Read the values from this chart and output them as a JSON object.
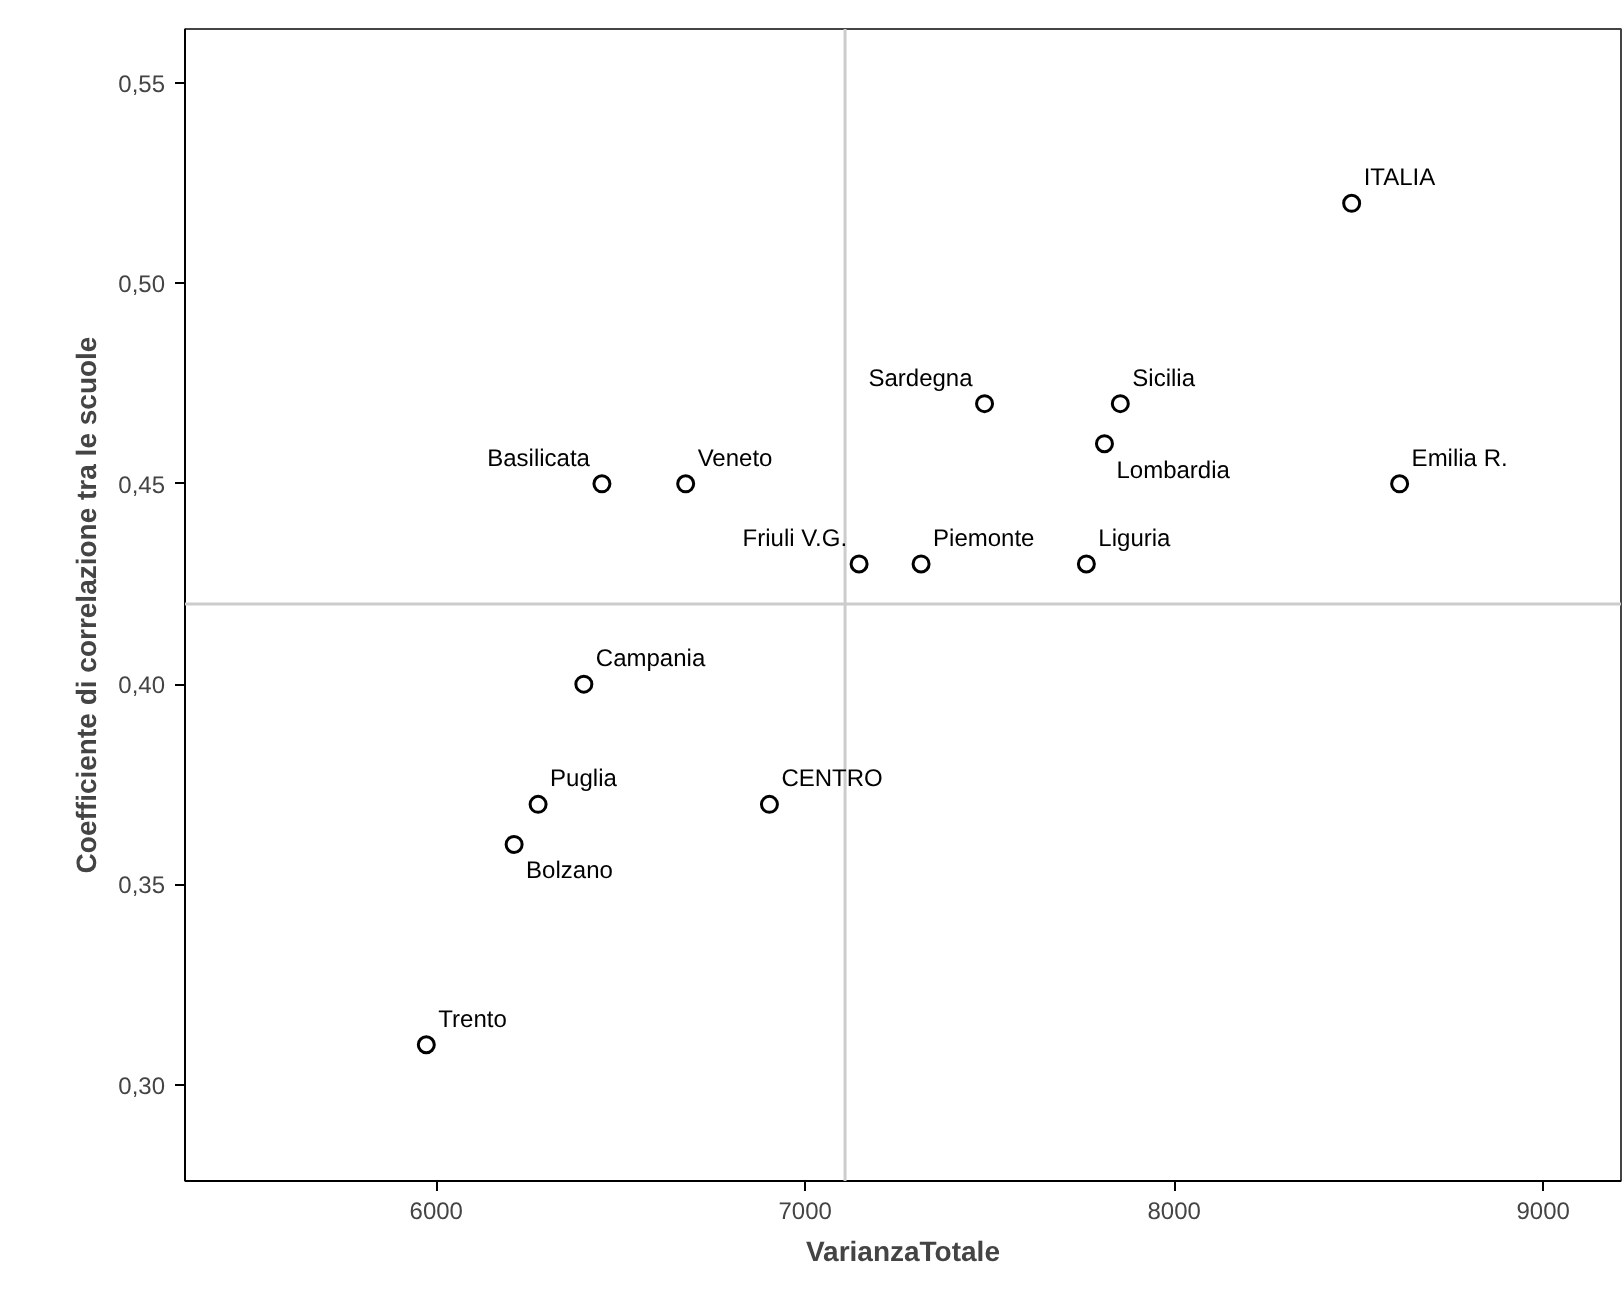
{
  "chart_data": {
    "type": "scatter",
    "xlabel": "VarianzaTotale",
    "ylabel": "Coefficiente di correlazione tra le scuole",
    "x": [
      8481,
      8611,
      7854,
      7486,
      7811,
      7762,
      7314,
      7146,
      6676,
      6449,
      6400,
      6276,
      6211,
      6903,
      5973
    ],
    "values": [
      0.52,
      0.45,
      0.47,
      0.47,
      0.46,
      0.43,
      0.43,
      0.43,
      0.45,
      0.45,
      0.4,
      0.37,
      0.36,
      0.37,
      0.31
    ],
    "color": "#000000",
    "marker": "circle",
    "grid": false,
    "xlim": [
      5319,
      9211
    ],
    "ylim": [
      0.276,
      0.5635
    ],
    "xticks": [
      6000,
      7000,
      8000,
      9000
    ],
    "yticks": [
      {
        "value": 0.3,
        "label": "0,30"
      },
      {
        "value": 0.35,
        "label": "0,35"
      },
      {
        "value": 0.4,
        "label": "0,40"
      },
      {
        "value": 0.45,
        "label": "0,45"
      },
      {
        "value": 0.5,
        "label": "0,50"
      },
      {
        "value": 0.55,
        "label": "0,55"
      }
    ],
    "ref_lines": [
      {
        "axis": "x",
        "value": 7108,
        "color": "#cccccc"
      },
      {
        "axis": "y",
        "value": 0.42,
        "color": "#cccccc"
      }
    ],
    "annotations": [
      {
        "text": "ITALIA",
        "x": 8481,
        "y": 0.52
      },
      {
        "text": "Emilia R.",
        "x": 8611,
        "y": 0.45
      },
      {
        "text": "Sicilia",
        "x": 7854,
        "y": 0.47
      },
      {
        "text": "Sardegna",
        "x": 7486,
        "y": 0.47
      },
      {
        "text": "Lombardia",
        "x": 7811,
        "y": 0.46
      },
      {
        "text": "Liguria",
        "x": 7762,
        "y": 0.43
      },
      {
        "text": "Piemonte",
        "x": 7314,
        "y": 0.43
      },
      {
        "text": "Friuli V.G.",
        "x": 7146,
        "y": 0.43
      },
      {
        "text": "Veneto",
        "x": 6676,
        "y": 0.45
      },
      {
        "text": "Basilicata",
        "x": 6449,
        "y": 0.45
      },
      {
        "text": "Campania",
        "x": 6400,
        "y": 0.4
      },
      {
        "text": "Puglia",
        "x": 6276,
        "y": 0.37
      },
      {
        "text": "Bolzano",
        "x": 6211,
        "y": 0.36
      },
      {
        "text": "CENTRO",
        "x": 6903,
        "y": 0.37
      },
      {
        "text": "Trento",
        "x": 5973,
        "y": 0.31
      }
    ]
  }
}
